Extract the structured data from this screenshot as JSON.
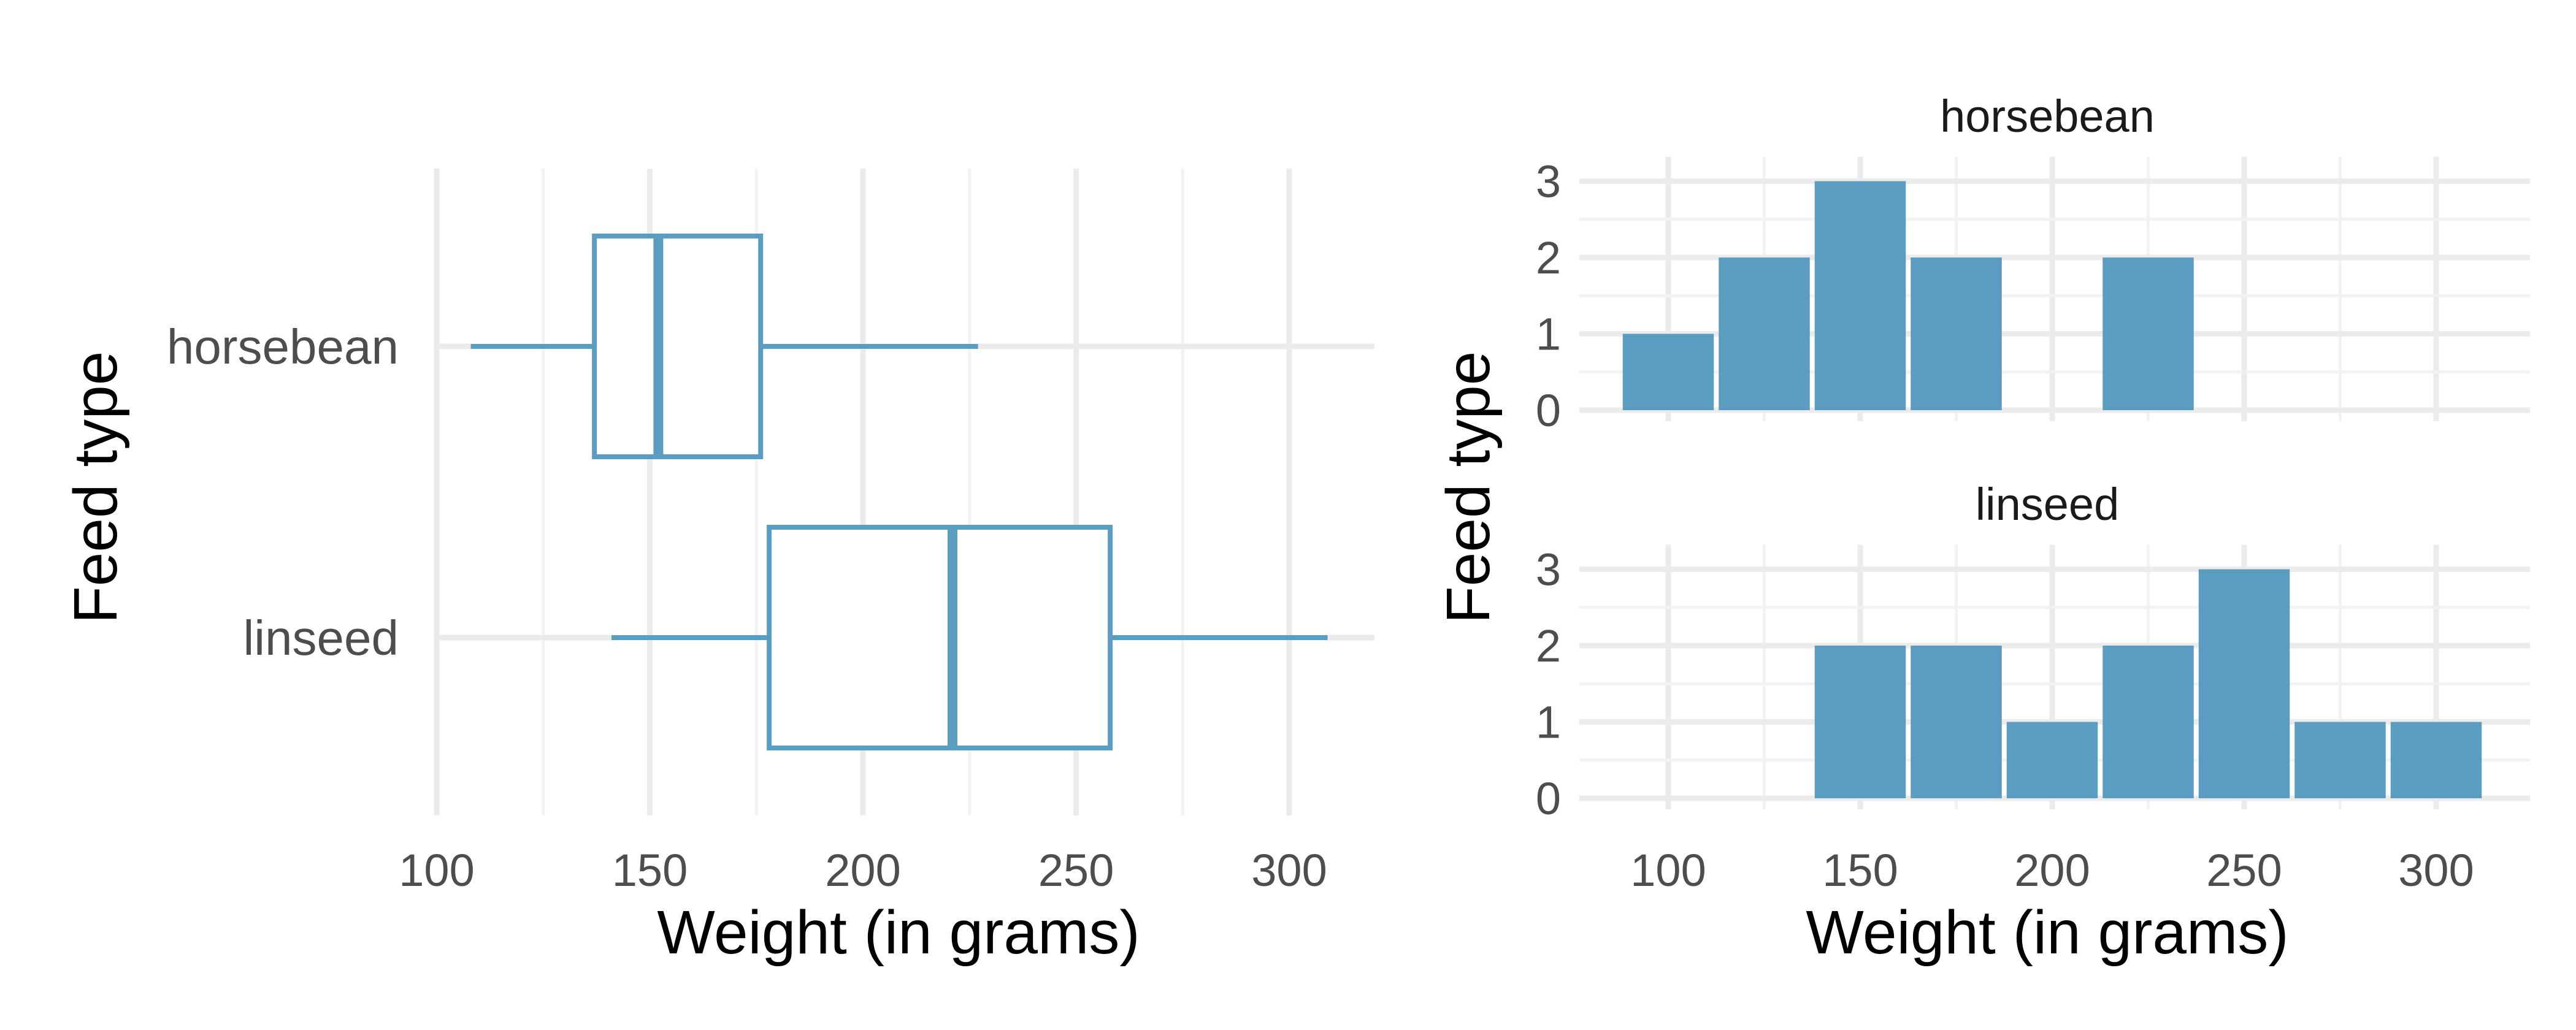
{
  "chart_data": [
    {
      "type": "boxplot",
      "orientation": "horizontal",
      "xlabel": "Weight (in grams)",
      "ylabel": "Feed type",
      "xlim": [
        100,
        320
      ],
      "xticks": [
        100,
        150,
        200,
        250,
        300
      ],
      "grid": true,
      "color": "#5B9DC0",
      "categories": [
        "horsebean",
        "linseed"
      ],
      "boxes": [
        {
          "name": "horsebean",
          "min": 108,
          "q1": 137,
          "median": 152,
          "q3": 176,
          "max": 227
        },
        {
          "name": "linseed",
          "min": 141,
          "q1": 178,
          "median": 221,
          "q3": 258,
          "max": 309
        }
      ]
    },
    {
      "type": "histogram",
      "facets": [
        "horsebean",
        "linseed"
      ],
      "xlabel": "Weight (in grams)",
      "ylabel": "Feed type",
      "xlim": [
        80,
        320
      ],
      "ylim": [
        0,
        3
      ],
      "xticks": [
        100,
        150,
        200,
        250,
        300
      ],
      "yticks": [
        0,
        1,
        2,
        3
      ],
      "grid": true,
      "color": "#5B9DC0",
      "bin_width": 25,
      "bins": [
        87.5,
        112.5,
        137.5,
        162.5,
        187.5,
        212.5,
        237.5,
        262.5,
        287.5,
        312.5
      ],
      "series": [
        {
          "name": "horsebean",
          "values": [
            1,
            2,
            3,
            2,
            0,
            2,
            0,
            0,
            0
          ]
        },
        {
          "name": "linseed",
          "values": [
            0,
            0,
            2,
            2,
            1,
            2,
            3,
            1,
            1
          ]
        }
      ]
    }
  ]
}
